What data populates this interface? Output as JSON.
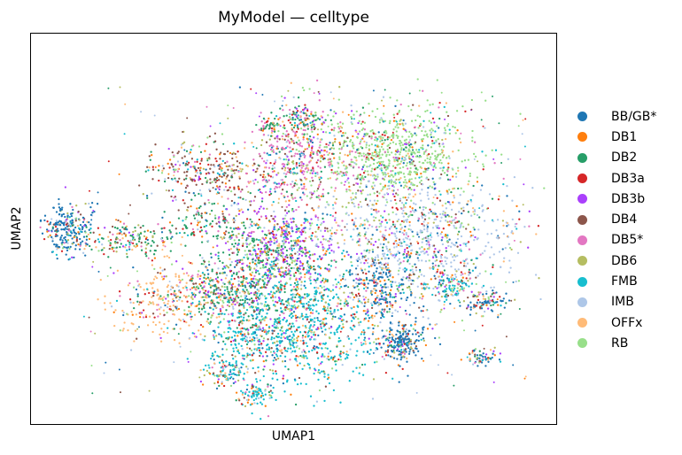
{
  "chart_data": {
    "type": "scatter",
    "title": "MyModel — celltype",
    "xlabel": "UMAP1",
    "ylabel": "UMAP2",
    "xticks": false,
    "yticks": false,
    "grid": false,
    "legend_placement": "right",
    "point_style": "small dots, dense clusters",
    "series": [
      {
        "name": "BB/GB*",
        "color": "#1f77b4"
      },
      {
        "name": "DB1",
        "color": "#ff7f0e"
      },
      {
        "name": "DB2",
        "color": "#279e68"
      },
      {
        "name": "DB3a",
        "color": "#d62728"
      },
      {
        "name": "DB3b",
        "color": "#aa40fc"
      },
      {
        "name": "DB4",
        "color": "#8c564b"
      },
      {
        "name": "DB5*",
        "color": "#e377c2"
      },
      {
        "name": "DB6",
        "color": "#b5bd61"
      },
      {
        "name": "FMB",
        "color": "#17becf"
      },
      {
        "name": "IMB",
        "color": "#aec7e8"
      },
      {
        "name": "OFFx",
        "color": "#ffbb78"
      },
      {
        "name": "RB",
        "color": "#98df8a"
      }
    ]
  }
}
